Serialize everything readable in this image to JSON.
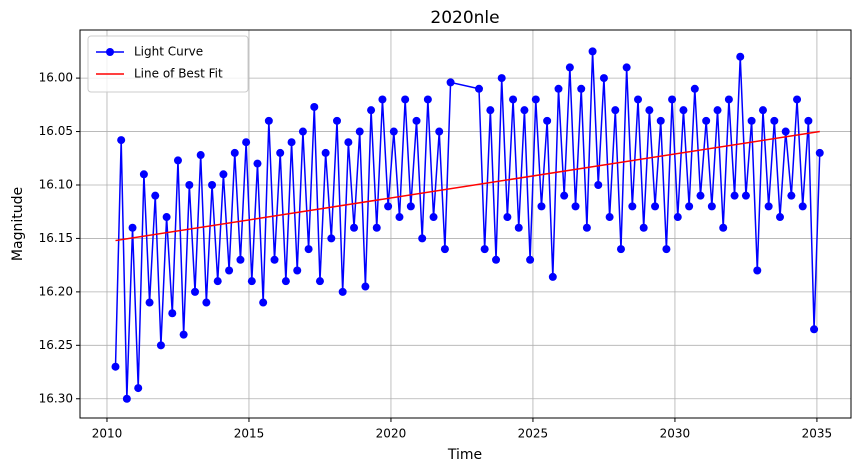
{
  "chart_data": {
    "type": "line",
    "title": "2020nle",
    "x_label": "Time",
    "y_label": "Magnitude",
    "xlim": [
      2009.05,
      2036.2
    ],
    "ylim": [
      16.318,
      15.955
    ],
    "xticks": [
      2010,
      2015,
      2020,
      2025,
      2030,
      2035
    ],
    "yticks": [
      {
        "value": 16.0,
        "label": "16.00"
      },
      {
        "value": 16.05,
        "label": "16.05"
      },
      {
        "value": 16.1,
        "label": "16.10"
      },
      {
        "value": 16.15,
        "label": "16.15"
      },
      {
        "value": 16.2,
        "label": "16.20"
      },
      {
        "value": 16.25,
        "label": "16.25"
      },
      {
        "value": 16.3,
        "label": "16.30"
      }
    ],
    "grid": true,
    "legend": "upper left",
    "series": [
      {
        "name": "Light Curve",
        "color": "#0000ff",
        "marker": "o",
        "x": [
          2010.3,
          2010.5,
          2010.7,
          2010.9,
          2011.1,
          2011.3,
          2011.5,
          2011.7,
          2011.9,
          2012.1,
          2012.3,
          2012.5,
          2012.7,
          2012.9,
          2013.1,
          2013.3,
          2013.5,
          2013.7,
          2013.9,
          2014.1,
          2014.3,
          2014.5,
          2014.7,
          2014.9,
          2015.1,
          2015.3,
          2015.5,
          2015.7,
          2015.9,
          2016.1,
          2016.3,
          2016.5,
          2016.7,
          2016.9,
          2017.1,
          2017.3,
          2017.5,
          2017.7,
          2017.9,
          2018.1,
          2018.3,
          2018.5,
          2018.7,
          2018.9,
          2019.1,
          2019.3,
          2019.5,
          2019.7,
          2019.9,
          2020.1,
          2020.3,
          2020.5,
          2020.7,
          2020.9,
          2021.1,
          2021.3,
          2021.5,
          2021.7,
          2021.9,
          2022.1,
          2023.1,
          2023.3,
          2023.5,
          2023.7,
          2023.9,
          2024.1,
          2024.3,
          2024.5,
          2024.7,
          2024.9,
          2025.1,
          2025.3,
          2025.5,
          2025.7,
          2025.9,
          2026.1,
          2026.3,
          2026.5,
          2026.7,
          2026.9,
          2027.1,
          2027.3,
          2027.5,
          2027.7,
          2027.9,
          2028.1,
          2028.3,
          2028.5,
          2028.7,
          2028.9,
          2029.1,
          2029.3,
          2029.5,
          2029.7,
          2029.9,
          2030.1,
          2030.3,
          2030.5,
          2030.7,
          2030.9,
          2031.1,
          2031.3,
          2031.5,
          2031.7,
          2031.9,
          2032.1,
          2032.3,
          2032.5,
          2032.7,
          2032.9,
          2033.1,
          2033.3,
          2033.5,
          2033.7,
          2033.9,
          2034.1,
          2034.3,
          2034.5,
          2034.7,
          2034.9,
          2035.1
        ],
        "values": [
          16.27,
          16.058,
          16.3,
          16.14,
          16.29,
          16.09,
          16.21,
          16.11,
          16.25,
          16.13,
          16.22,
          16.077,
          16.24,
          16.1,
          16.2,
          16.072,
          16.21,
          16.1,
          16.19,
          16.09,
          16.18,
          16.07,
          16.17,
          16.06,
          16.19,
          16.08,
          16.21,
          16.04,
          16.17,
          16.07,
          16.19,
          16.06,
          16.18,
          16.05,
          16.16,
          16.027,
          16.19,
          16.07,
          16.15,
          16.04,
          16.2,
          16.06,
          16.14,
          16.05,
          16.195,
          16.03,
          16.14,
          16.02,
          16.12,
          16.05,
          16.13,
          16.02,
          16.12,
          16.04,
          16.15,
          16.02,
          16.13,
          16.05,
          16.16,
          16.004,
          16.01,
          16.16,
          16.03,
          16.17,
          16.0,
          16.13,
          16.02,
          16.14,
          16.03,
          16.17,
          16.02,
          16.12,
          16.04,
          16.186,
          16.01,
          16.11,
          15.99,
          16.12,
          16.01,
          16.14,
          15.975,
          16.1,
          16.0,
          16.13,
          16.03,
          16.16,
          15.99,
          16.12,
          16.02,
          16.14,
          16.03,
          16.12,
          16.04,
          16.16,
          16.02,
          16.13,
          16.03,
          16.12,
          16.01,
          16.11,
          16.04,
          16.12,
          16.03,
          16.14,
          16.02,
          16.11,
          15.98,
          16.11,
          16.04,
          16.18,
          16.03,
          16.12,
          16.04,
          16.13,
          16.05,
          16.11,
          16.02,
          16.12,
          16.04,
          16.235,
          16.07
        ]
      },
      {
        "name": "Line of Best Fit",
        "color": "#ff0000",
        "x": [
          2010.3,
          2035.1
        ],
        "values": [
          16.152,
          16.05
        ]
      }
    ]
  }
}
